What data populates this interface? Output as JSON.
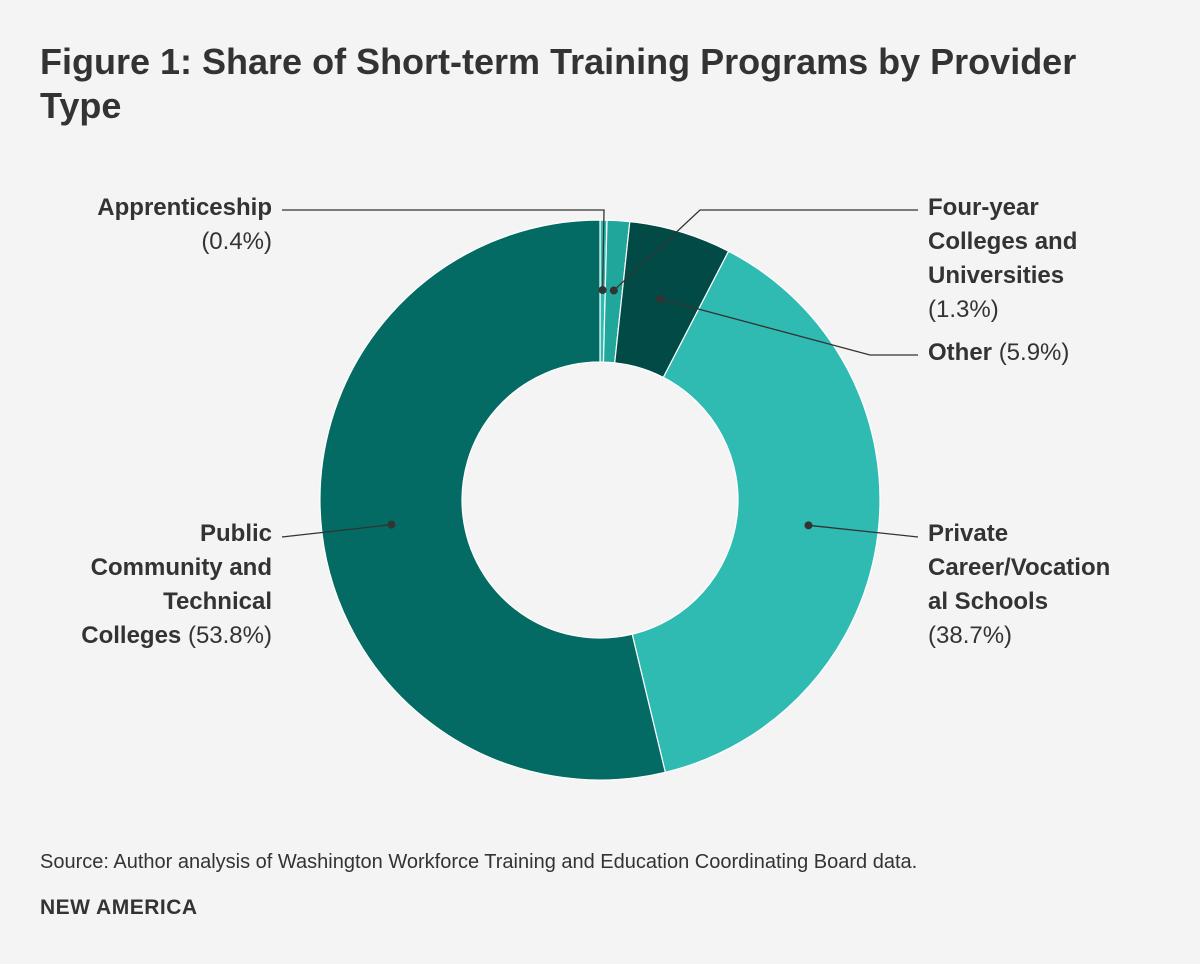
{
  "title": "Figure 1: Share of Short-term Training Programs by Provider Type",
  "source": "Source: Author analysis of Washington Workforce Training and Education Coordinating Board data.",
  "brand": "NEW AMERICA",
  "labels": {
    "apprenticeship": {
      "name": "Apprenticeship",
      "pct": "(0.4%)"
    },
    "four_year": {
      "name_line1": "Four-year",
      "name_line2": "Colleges and",
      "name_line3": "Universities",
      "pct": "(1.3%)"
    },
    "other": {
      "name": "Other",
      "pct": "(5.9%)"
    },
    "private": {
      "name_line1": "Private",
      "name_line2": "Career/Vocation",
      "name_line3": "al Schools",
      "pct": "(38.7%)"
    },
    "public": {
      "name_line1": "Public",
      "name_line2": "Community and",
      "name_line3": "Technical",
      "name_line4": "Colleges",
      "pct": "(53.8%)"
    }
  },
  "chart_data": {
    "type": "pie",
    "variant": "donut",
    "title": "Figure 1: Share of Short-term Training Programs by Provider Type",
    "slices": [
      {
        "name": "Apprenticeship",
        "value": 0.4,
        "color": "#2fbbb2"
      },
      {
        "name": "Four-year Colleges and Universities",
        "value": 1.3,
        "color": "#21a69c"
      },
      {
        "name": "Other",
        "value": 5.9,
        "color": "#024a45"
      },
      {
        "name": "Private Career/Vocational Schools",
        "value": 38.7,
        "color": "#2fbbb2"
      },
      {
        "name": "Public Community and Technical Colleges",
        "value": 53.8,
        "color": "#036b63"
      }
    ],
    "start": "top",
    "direction": "clockwise",
    "legend": "callout labels"
  }
}
